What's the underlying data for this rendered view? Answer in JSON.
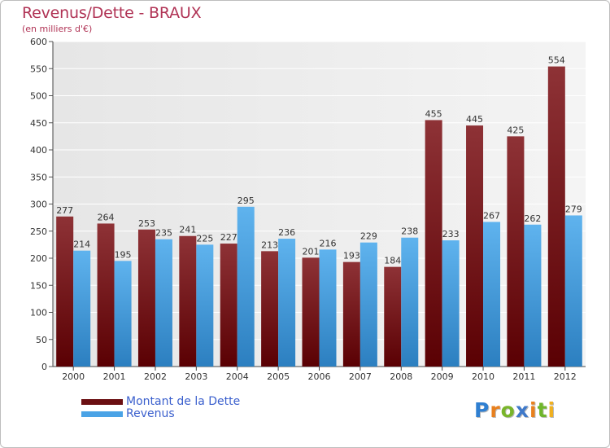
{
  "header": {
    "title": "Revenus/Dette - BRAUX",
    "subtitle": "(en milliers d'€)"
  },
  "chart_data": {
    "type": "bar",
    "title": "Revenus/Dette - BRAUX",
    "ylabel": "(en milliers d'€)",
    "xlabel": "",
    "categories": [
      "2000",
      "2001",
      "2002",
      "2003",
      "2004",
      "2005",
      "2006",
      "2007",
      "2008",
      "2009",
      "2010",
      "2011",
      "2012"
    ],
    "series": [
      {
        "name": "Montant de la Dette",
        "color": "#7a1a1e",
        "values": [
          277,
          264,
          253,
          241,
          227,
          213,
          201,
          193,
          184,
          455,
          445,
          425,
          554
        ]
      },
      {
        "name": "Revenus",
        "color": "#3d9ad8",
        "values": [
          214,
          195,
          235,
          225,
          295,
          236,
          216,
          229,
          238,
          233,
          267,
          262,
          279
        ]
      }
    ],
    "ylim": [
      0,
      600
    ],
    "yticks": [
      0,
      50,
      100,
      150,
      200,
      250,
      300,
      350,
      400,
      450,
      500,
      550,
      600
    ],
    "grid": true,
    "data_labels": true,
    "legend_position": "bottom-left"
  },
  "legend": {
    "items": [
      {
        "label": "Montant de la Dette",
        "color": "#6b0f12"
      },
      {
        "label": "Revenus",
        "color": "#4aa3e6"
      }
    ]
  },
  "logo": {
    "letters": [
      "P",
      "r",
      "o",
      "x",
      "i",
      "t",
      "i"
    ],
    "colors": [
      "#2f7fd1",
      "#e8801e",
      "#79b52a",
      "#3f79c9",
      "#e8801e",
      "#6fb62b",
      "#f0b020"
    ]
  }
}
